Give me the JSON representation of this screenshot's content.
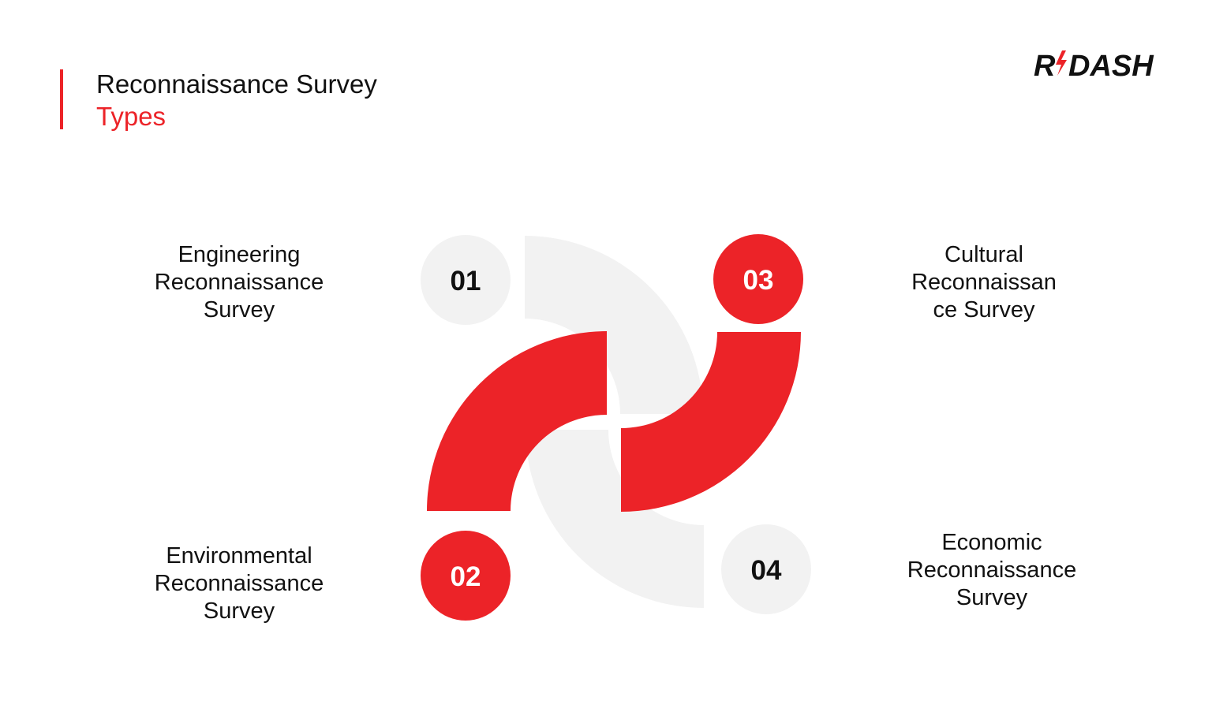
{
  "header": {
    "title_line1": "Reconnaissance Survey",
    "title_line2": "Types"
  },
  "logo": {
    "text_left": "R",
    "text_right": "DASH",
    "icon": "lightning-bolt-icon"
  },
  "colors": {
    "accent": "#ec2328",
    "light_gray": "#f2f2f2",
    "text": "#111111"
  },
  "items": [
    {
      "number": "01",
      "label": "Engineering\nReconnaissance\nSurvey"
    },
    {
      "number": "02",
      "label": "Environmental\nReconnaissance\nSurvey"
    },
    {
      "number": "03",
      "label": "Cultural\nReconnaissan\nce Survey"
    },
    {
      "number": "04",
      "label": "Economic\nReconnaissance\nSurvey"
    }
  ]
}
